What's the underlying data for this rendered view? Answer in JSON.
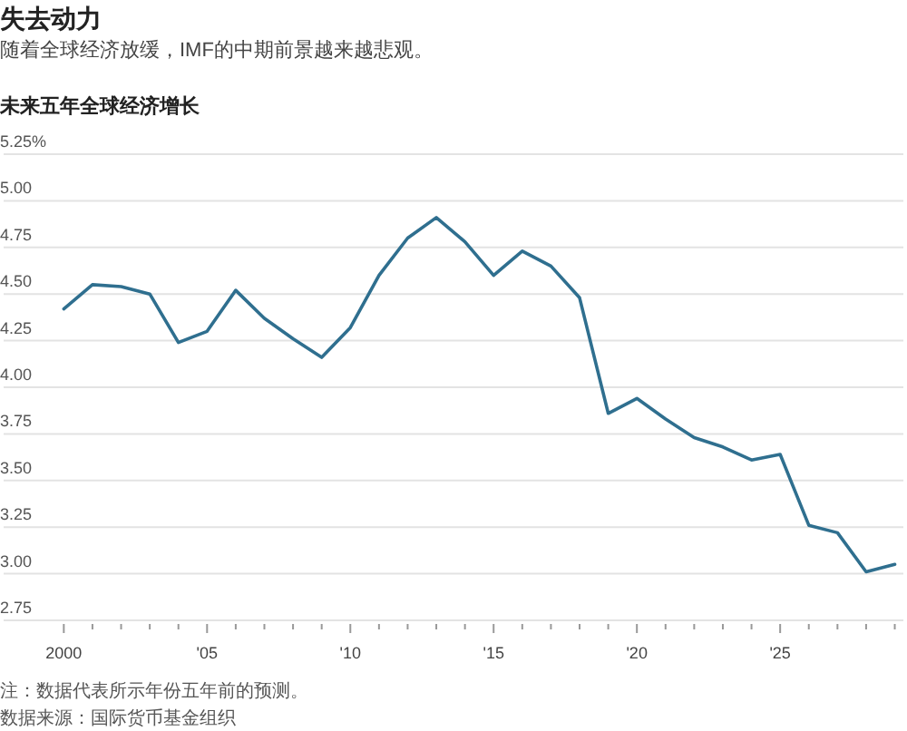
{
  "chart_data": {
    "type": "line",
    "title": "失去动力",
    "subtitle": "随着全球经济放缓，IMF的中期前景越来越悲观。",
    "ylabel": "未来五年全球经济增长",
    "annotations": [
      "注：数据代表所示年份五年前的预测。",
      "数据来源：国际货币基金组织"
    ],
    "x": [
      2000,
      2001,
      2002,
      2003,
      2004,
      2005,
      2006,
      2007,
      2008,
      2009,
      2010,
      2011,
      2012,
      2013,
      2014,
      2015,
      2016,
      2017,
      2018,
      2019,
      2020,
      2021,
      2022,
      2023,
      2024,
      2025,
      2026,
      2027,
      2028,
      2029
    ],
    "series": [
      {
        "color": "#2f6f8f",
        "values": [
          4.42,
          4.55,
          4.54,
          4.5,
          4.24,
          4.3,
          4.52,
          4.37,
          4.26,
          4.16,
          4.32,
          4.6,
          4.8,
          4.91,
          4.78,
          4.6,
          4.73,
          4.65,
          4.48,
          3.86,
          3.94,
          3.83,
          3.73,
          3.68,
          3.61,
          3.64,
          3.26,
          3.22,
          3.01,
          3.05
        ]
      }
    ],
    "xlim": [
      1997.9,
      2029.3
    ],
    "xticks": [
      {
        "value": 2000,
        "label": "2000"
      },
      {
        "value": 2001,
        "label": null
      },
      {
        "value": 2002,
        "label": null
      },
      {
        "value": 2003,
        "label": null
      },
      {
        "value": 2004,
        "label": null
      },
      {
        "value": 2005,
        "label": "'05"
      },
      {
        "value": 2006,
        "label": null
      },
      {
        "value": 2007,
        "label": null
      },
      {
        "value": 2008,
        "label": null
      },
      {
        "value": 2009,
        "label": null
      },
      {
        "value": 2010,
        "label": "'10"
      },
      {
        "value": 2011,
        "label": null
      },
      {
        "value": 2012,
        "label": null
      },
      {
        "value": 2013,
        "label": null
      },
      {
        "value": 2014,
        "label": null
      },
      {
        "value": 2015,
        "label": "'15"
      },
      {
        "value": 2016,
        "label": null
      },
      {
        "value": 2017,
        "label": null
      },
      {
        "value": 2018,
        "label": null
      },
      {
        "value": 2019,
        "label": null
      },
      {
        "value": 2020,
        "label": "'20"
      },
      {
        "value": 2021,
        "label": null
      },
      {
        "value": 2022,
        "label": null
      },
      {
        "value": 2023,
        "label": null
      },
      {
        "value": 2024,
        "label": null
      },
      {
        "value": 2025,
        "label": "'25"
      },
      {
        "value": 2026,
        "label": null
      },
      {
        "value": 2027,
        "label": null
      },
      {
        "value": 2028,
        "label": null
      },
      {
        "value": 2029,
        "label": null
      }
    ],
    "ylim": [
      2.75,
      5.25
    ],
    "yticks": [
      {
        "value": 5.25,
        "label": "5.25%"
      },
      {
        "value": 5.0,
        "label": "5.00"
      },
      {
        "value": 4.75,
        "label": "4.75"
      },
      {
        "value": 4.5,
        "label": "4.50"
      },
      {
        "value": 4.25,
        "label": "4.25"
      },
      {
        "value": 4.0,
        "label": "4.00"
      },
      {
        "value": 3.75,
        "label": "3.75"
      },
      {
        "value": 3.5,
        "label": "3.50"
      },
      {
        "value": 3.25,
        "label": "3.25"
      },
      {
        "value": 3.0,
        "label": "3.00"
      },
      {
        "value": 2.75,
        "label": "2.75"
      }
    ],
    "grid": "y",
    "marker": "none",
    "line_style": "solid"
  }
}
